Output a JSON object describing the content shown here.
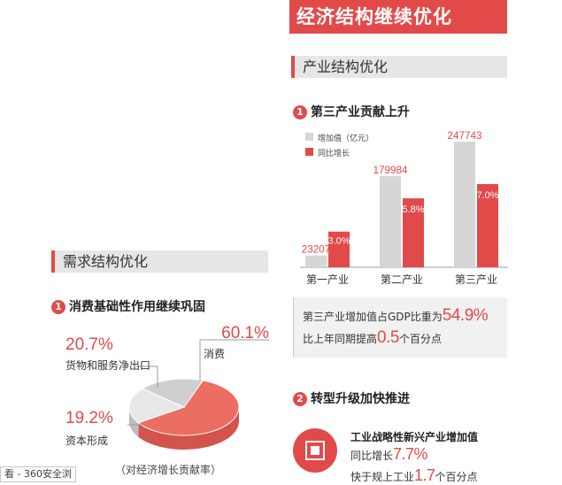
{
  "main_title": "经济结构继续优化",
  "sections": {
    "industry": {
      "title": "产业结构优化",
      "item1": {
        "num": "1",
        "title": "第三产业贡献上升"
      },
      "note": {
        "line1_prefix": "第三产业增加值占GDP比重为",
        "line1_value": "54.9%",
        "line2_prefix": "比上年同期提高",
        "line2_value": "0.5",
        "line2_suffix": "个百分点"
      },
      "item2": {
        "num": "2",
        "title": "转型升级加快推进",
        "sub_title": "工业战略性新兴产业增加值",
        "line1_prefix": "同比增长",
        "line1_value": "7.7%",
        "line2_prefix": "快于规上工业",
        "line2_value": "1.7",
        "line2_suffix": "个百分点"
      }
    },
    "demand": {
      "title": "需求结构优化",
      "item1": {
        "num": "1",
        "title": "消费基础性作用继续巩固"
      },
      "caption": "（对经济增长贡献率）"
    }
  },
  "colors": {
    "accent": "#e24a4a",
    "gray_bar": "#d6d6d6",
    "pie_red": "#ec6d62",
    "pie_gray": "#d9d9d9"
  },
  "chart_data": [
    {
      "type": "bar",
      "title": "第三产业贡献上升",
      "categories": [
        "第一产业",
        "第二产业",
        "第三产业"
      ],
      "series": [
        {
          "name": "增加值（亿元）",
          "values": [
            23207,
            179984,
            247743
          ],
          "labels": [
            "23207",
            "179984",
            "247743"
          ]
        },
        {
          "name": "同比增长",
          "values": [
            3.0,
            5.8,
            7.0
          ],
          "labels": [
            "3.0%",
            "5.8%",
            "7.0%"
          ]
        }
      ]
    },
    {
      "type": "pie",
      "title": "消费基础性作用继续巩固",
      "slices": [
        {
          "label": "消费",
          "value": 60.1,
          "value_label": "60.1%"
        },
        {
          "label": "货物和服务净出口",
          "value": 20.7,
          "value_label": "20.7%"
        },
        {
          "label": "资本形成",
          "value": 19.2,
          "value_label": "19.2%"
        }
      ]
    }
  ],
  "tooltip": "看 - 360安全浏"
}
